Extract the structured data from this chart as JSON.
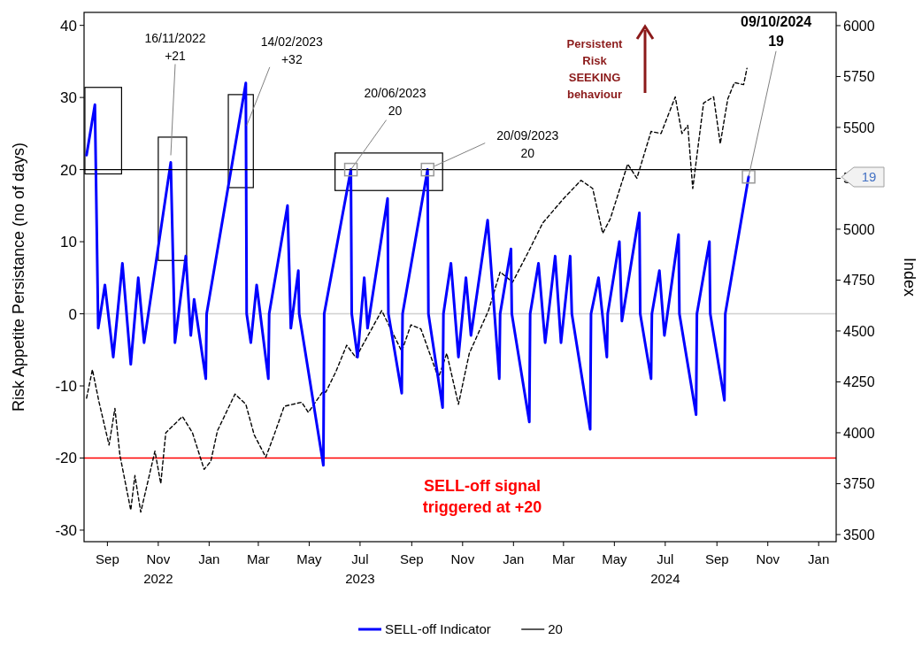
{
  "chart_data": {
    "type": "line",
    "ylabel": "Risk Appetite Persistance (no of days)",
    "y2label": "Index",
    "xlim": [
      "2022-08-04",
      "2025-01-22"
    ],
    "xticks": [
      {
        "value": "2022-09-01",
        "label": "Sep"
      },
      {
        "value": "2022-11-01",
        "label": "Nov\n2022"
      },
      {
        "value": "2023-01-01",
        "label": "Jan"
      },
      {
        "value": "2023-03-01",
        "label": "Mar"
      },
      {
        "value": "2023-05-01",
        "label": "May"
      },
      {
        "value": "2023-07-01",
        "label": "Jul\n2023"
      },
      {
        "value": "2023-09-01",
        "label": "Sep"
      },
      {
        "value": "2023-11-01",
        "label": "Nov"
      },
      {
        "value": "2024-01-01",
        "label": "Jan"
      },
      {
        "value": "2024-03-01",
        "label": "Mar"
      },
      {
        "value": "2024-05-01",
        "label": "May"
      },
      {
        "value": "2024-07-01",
        "label": "Jul\n2024"
      },
      {
        "value": "2024-09-01",
        "label": "Sep"
      },
      {
        "value": "2024-11-01",
        "label": "Nov"
      },
      {
        "value": "2025-01-01",
        "label": "Jan"
      }
    ],
    "ylim": [
      -31.6,
      41.8
    ],
    "yticks": [
      -30,
      -20,
      -10,
      0,
      10,
      20,
      30,
      40
    ],
    "y2lim": [
      3465,
      6065
    ],
    "y2ticks": [
      3500,
      3750,
      4000,
      4250,
      4500,
      4750,
      5000,
      5250,
      5500,
      5750,
      6000
    ],
    "series": [
      {
        "color": "#000000",
        "axis": "y2",
        "line_style": "dashed",
        "x": [
          "2022-08-07",
          "2022-08-14",
          "2022-08-22",
          "2022-09-03",
          "2022-09-10",
          "2022-09-16",
          "2022-09-29",
          "2022-10-04",
          "2022-10-11",
          "2022-10-28",
          "2022-11-04",
          "2022-11-10",
          "2022-11-30",
          "2022-12-12",
          "2022-12-26",
          "2023-01-03",
          "2023-01-11",
          "2023-02-01",
          "2023-02-14",
          "2023-02-24",
          "2023-03-10",
          "2023-03-20",
          "2023-04-01",
          "2023-04-22",
          "2023-04-30",
          "2023-05-17",
          "2023-05-21",
          "2023-06-02",
          "2023-06-15",
          "2023-06-26",
          "2023-07-27",
          "2023-08-20",
          "2023-08-31",
          "2023-09-12",
          "2023-10-03",
          "2023-10-13",
          "2023-10-27",
          "2023-11-09",
          "2023-12-02",
          "2023-12-16",
          "2023-12-31",
          "2024-01-19",
          "2024-02-05",
          "2024-03-01",
          "2024-03-22",
          "2024-04-05",
          "2024-04-17",
          "2024-04-26",
          "2024-05-17",
          "2024-05-28",
          "2024-06-14",
          "2024-06-26",
          "2024-07-13",
          "2024-07-21",
          "2024-07-28",
          "2024-08-03",
          "2024-08-16",
          "2024-08-28",
          "2024-09-05",
          "2024-09-14",
          "2024-09-22",
          "2024-10-03",
          "2024-10-07"
        ],
        "values": [
          4170,
          4310,
          4150,
          3940,
          4120,
          3890,
          3620,
          3790,
          3610,
          3910,
          3750,
          4000,
          4080,
          4000,
          3820,
          3860,
          4010,
          4190,
          4140,
          3990,
          3880,
          3990,
          4130,
          4150,
          4100,
          4200,
          4200,
          4300,
          4430,
          4370,
          4600,
          4400,
          4530,
          4510,
          4270,
          4390,
          4140,
          4390,
          4600,
          4790,
          4740,
          4890,
          5030,
          5150,
          5240,
          5200,
          4980,
          5050,
          5320,
          5250,
          5480,
          5470,
          5650,
          5470,
          5510,
          5200,
          5620,
          5650,
          5420,
          5640,
          5720,
          5710,
          5790
        ]
      },
      {
        "name": "SELL-off Indicator",
        "color": "#0000ff",
        "line_style": "solid",
        "x": [
          "2022-08-07",
          "2022-08-17",
          "2022-08-21",
          "2022-08-29",
          "2022-09-08",
          "2022-09-19",
          "2022-09-29",
          "2022-10-08",
          "2022-10-15",
          "2022-11-16",
          "2022-11-21",
          "2022-12-04",
          "2022-12-10",
          "2022-12-14",
          "2022-12-28",
          "2022-12-29",
          "2023-02-14",
          "2023-02-15",
          "2023-02-20",
          "2023-02-27",
          "2023-03-13",
          "2023-03-14",
          "2023-04-05",
          "2023-04-09",
          "2023-04-18",
          "2023-04-19",
          "2023-05-18",
          "2023-05-19",
          "2023-06-20",
          "2023-06-21",
          "2023-06-28",
          "2023-07-06",
          "2023-07-10",
          "2023-08-03",
          "2023-08-04",
          "2023-08-20",
          "2023-08-21",
          "2023-09-20",
          "2023-09-21",
          "2023-10-08",
          "2023-10-09",
          "2023-10-18",
          "2023-10-27",
          "2023-11-05",
          "2023-11-11",
          "2023-12-01",
          "2023-12-15",
          "2023-12-16",
          "2023-12-29",
          "2023-12-30",
          "2024-01-20",
          "2024-01-21",
          "2024-01-31",
          "2024-02-08",
          "2024-02-20",
          "2024-02-27",
          "2024-03-09",
          "2024-03-11",
          "2024-04-02",
          "2024-04-03",
          "2024-04-12",
          "2024-04-22",
          "2024-04-23",
          "2024-05-07",
          "2024-05-10",
          "2024-05-31",
          "2024-06-01",
          "2024-06-14",
          "2024-06-15",
          "2024-06-24",
          "2024-06-30",
          "2024-07-17",
          "2024-07-18",
          "2024-08-07",
          "2024-08-08",
          "2024-08-23",
          "2024-08-24",
          "2024-09-10",
          "2024-09-11",
          "2024-10-09"
        ],
        "values": [
          22,
          29,
          -2,
          4,
          -6,
          7,
          -7,
          5,
          -4,
          21,
          -4,
          8,
          -3,
          2,
          -9,
          0,
          32,
          0,
          -4,
          4,
          -9,
          0,
          15,
          -2,
          6,
          0,
          -21,
          0,
          20,
          0,
          -6,
          5,
          -2,
          16,
          0,
          -11,
          0,
          20,
          0,
          -13,
          0,
          7,
          -6,
          5,
          -3,
          13,
          -9,
          0,
          9,
          0,
          -15,
          0,
          7,
          -4,
          8,
          -4,
          8,
          0,
          -16,
          0,
          5,
          -6,
          0,
          10,
          -1,
          14,
          0,
          -9,
          0,
          6,
          -3,
          11,
          0,
          -14,
          0,
          10,
          0,
          -12,
          0,
          19
        ]
      },
      {
        "name": "20",
        "color": "#000000",
        "line_style": "solid",
        "x": [
          "2022-08-04",
          "2025-01-22"
        ],
        "values": [
          20,
          20
        ]
      }
    ],
    "ref_lines": [
      {
        "axis": "y",
        "value": 0,
        "color": "#d0d0d0"
      },
      {
        "axis": "y",
        "value": -20,
        "color": "#ff0000"
      }
    ],
    "annotations": [
      {
        "text": "16/11/2022\n+21",
        "x": "2022-11-16",
        "y": 21
      },
      {
        "text": "14/02/2023\n+32",
        "x": "2023-02-14",
        "y": 32
      },
      {
        "text": "20/06/2023\n20",
        "x": "2023-06-20",
        "y": 20
      },
      {
        "text": "20/09/2023\n20",
        "x": "2023-09-20",
        "y": 20
      },
      {
        "text": "09/10/2024\n19",
        "x": "2024-10-09",
        "y": 19
      },
      "19",
      "SELL-off signal\ntriggered at +20",
      "Persistent\nRisk\nSEEKING\nbehaviour"
    ],
    "legend": "bottom",
    "marker": "none",
    "grid": false
  }
}
